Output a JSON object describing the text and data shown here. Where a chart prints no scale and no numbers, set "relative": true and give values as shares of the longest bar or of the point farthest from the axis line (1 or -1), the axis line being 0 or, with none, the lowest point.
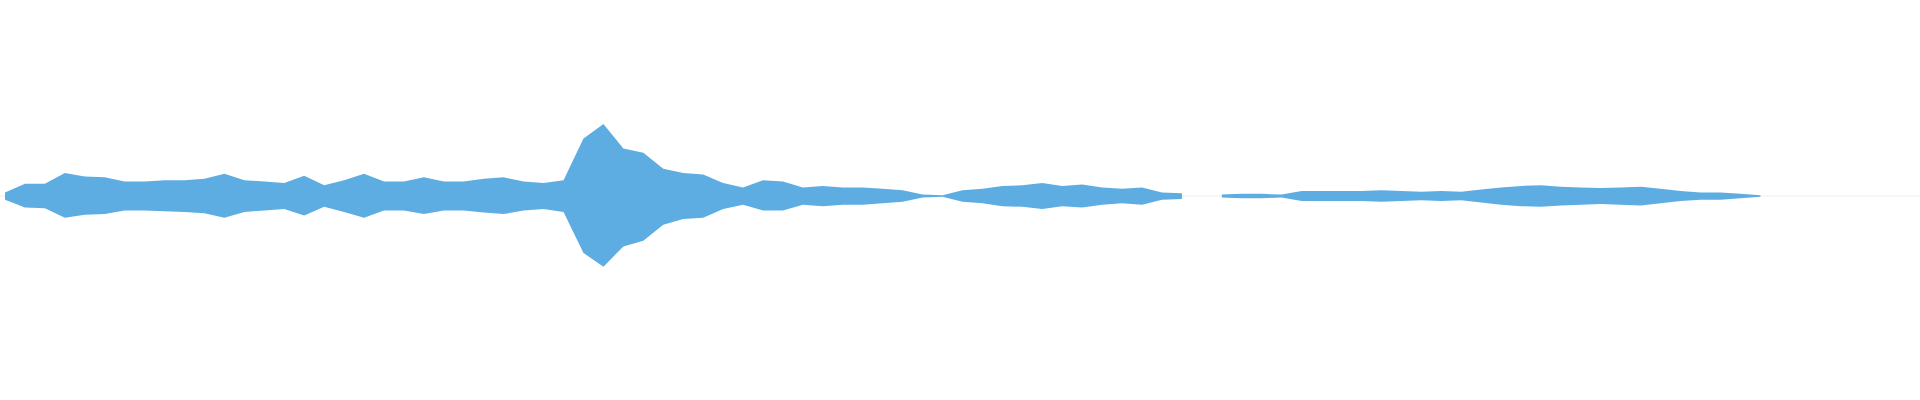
{
  "chart_data": {
    "type": "area",
    "relative": true,
    "categories": [
      null,
      null,
      null,
      null,
      null,
      null,
      null,
      null,
      null,
      null,
      null,
      null,
      null,
      null,
      null,
      null,
      null,
      null,
      null,
      null,
      null,
      null,
      null,
      null,
      null,
      null,
      null,
      null,
      null,
      null,
      null,
      null,
      null,
      null,
      null,
      null,
      null,
      null,
      null,
      null,
      null,
      null,
      null,
      null,
      null,
      null,
      null,
      null,
      null,
      null,
      null,
      null,
      null,
      null,
      null,
      null,
      null,
      null,
      null,
      null,
      null,
      null,
      null,
      null,
      null,
      null,
      null,
      null,
      null,
      null,
      null,
      null,
      null,
      null,
      null,
      null,
      null,
      null,
      null,
      null,
      null,
      null,
      null,
      null,
      null,
      null,
      null,
      null,
      null,
      null,
      null,
      null,
      null,
      null,
      null,
      null,
      null
    ],
    "series": [
      {
        "color": "#5dade2",
        "values": [
          0.05,
          0.17,
          0.17,
          0.32,
          0.27,
          0.26,
          0.2,
          0.2,
          0.22,
          0.22,
          0.24,
          0.31,
          0.22,
          0.2,
          0.18,
          0.28,
          0.15,
          0.22,
          0.31,
          0.2,
          0.2,
          0.26,
          0.2,
          0.2,
          0.24,
          0.26,
          0.2,
          0.18,
          0.22,
          0.8,
          1,
          0.66,
          0.6,
          0.38,
          0.32,
          0.3,
          0.18,
          0.12,
          0.22,
          0.2,
          0.12,
          0.14,
          0.12,
          0.12,
          0.1,
          0.08,
          0.02,
          0.01,
          0.08,
          0.1,
          0.14,
          0.15,
          0.18,
          0.14,
          0.16,
          0.12,
          0.1,
          0.12,
          0.05,
          0.04,
          null,
          0.02,
          0.03,
          0.03,
          0.02,
          0.07,
          0.07,
          0.07,
          0.07,
          0.08,
          0.07,
          0.06,
          0.07,
          0.06,
          0.09,
          0.12,
          0.14,
          0.15,
          0.13,
          0.12,
          0.11,
          0.12,
          0.13,
          0.1,
          0.07,
          0.05,
          0.05,
          0.03,
          0.01,
          null,
          null,
          null,
          null,
          null,
          null,
          null,
          null
        ]
      },
      {
        "color": "#5dade2",
        "values": [
          -0.05,
          -0.16,
          -0.17,
          -0.3,
          -0.26,
          -0.25,
          -0.2,
          -0.2,
          -0.21,
          -0.22,
          -0.24,
          -0.3,
          -0.22,
          -0.2,
          -0.18,
          -0.27,
          -0.15,
          -0.22,
          -0.3,
          -0.2,
          -0.2,
          -0.25,
          -0.2,
          -0.2,
          -0.23,
          -0.25,
          -0.2,
          -0.18,
          -0.22,
          -0.79,
          -0.98,
          -0.7,
          -0.62,
          -0.4,
          -0.32,
          -0.3,
          -0.18,
          -0.12,
          -0.2,
          -0.2,
          -0.12,
          -0.14,
          -0.12,
          -0.12,
          -0.1,
          -0.08,
          -0.02,
          -0.01,
          -0.08,
          -0.1,
          -0.14,
          -0.15,
          -0.18,
          -0.14,
          -0.16,
          -0.12,
          -0.1,
          -0.12,
          -0.05,
          -0.04,
          null,
          -0.02,
          -0.03,
          -0.03,
          -0.02,
          -0.07,
          -0.07,
          -0.07,
          -0.07,
          -0.08,
          -0.07,
          -0.06,
          -0.07,
          -0.06,
          -0.09,
          -0.12,
          -0.14,
          -0.15,
          -0.13,
          -0.12,
          -0.11,
          -0.12,
          -0.13,
          -0.1,
          -0.07,
          -0.05,
          -0.05,
          -0.03,
          -0.01,
          null,
          null,
          null,
          null,
          null,
          null,
          null,
          null
        ]
      }
    ]
  }
}
